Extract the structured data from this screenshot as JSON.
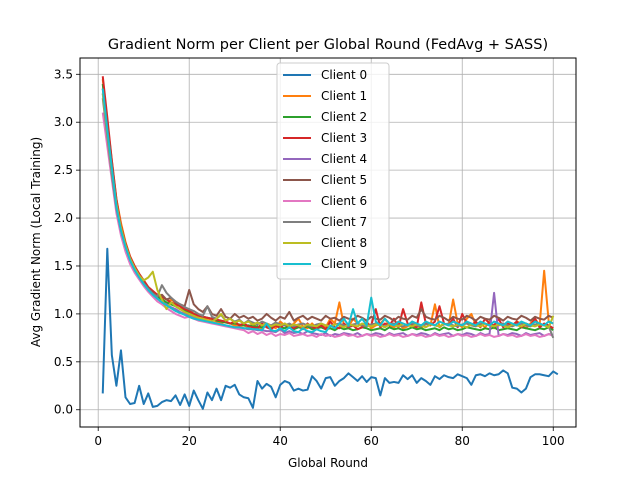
{
  "chart_data": {
    "type": "line",
    "title": "Gradient Norm per Client per Global Round (FedAvg + SASS)",
    "xlabel": "Global Round",
    "ylabel": "Avg Gradient Norm (Local Training)",
    "xlim": [
      -4,
      105
    ],
    "ylim": [
      -0.18,
      3.67
    ],
    "xticks": [
      0,
      20,
      40,
      60,
      80,
      100
    ],
    "yticks": [
      0.0,
      0.5,
      1.0,
      1.5,
      2.0,
      2.5,
      3.0,
      3.5
    ],
    "xtick_labels": [
      "0",
      "20",
      "40",
      "60",
      "80",
      "100"
    ],
    "ytick_labels": [
      "0.0",
      "0.5",
      "1.0",
      "1.5",
      "2.0",
      "2.5",
      "3.0",
      "3.5"
    ],
    "grid": true,
    "legend_position": "top-center",
    "x_start": 1,
    "series": [
      {
        "name": "Client 0",
        "color": "#1f77b4",
        "values": [
          0.17,
          1.68,
          0.57,
          0.25,
          0.62,
          0.13,
          0.06,
          0.07,
          0.25,
          0.06,
          0.17,
          0.03,
          0.04,
          0.08,
          0.1,
          0.09,
          0.15,
          0.05,
          0.16,
          0.04,
          0.2,
          0.1,
          0.01,
          0.18,
          0.1,
          0.22,
          0.1,
          0.25,
          0.23,
          0.26,
          0.16,
          0.13,
          0.12,
          0.02,
          0.3,
          0.22,
          0.27,
          0.24,
          0.13,
          0.26,
          0.3,
          0.28,
          0.2,
          0.22,
          0.2,
          0.21,
          0.35,
          0.3,
          0.22,
          0.33,
          0.34,
          0.25,
          0.3,
          0.33,
          0.38,
          0.34,
          0.3,
          0.35,
          0.29,
          0.34,
          0.33,
          0.15,
          0.33,
          0.28,
          0.29,
          0.28,
          0.36,
          0.32,
          0.36,
          0.28,
          0.33,
          0.3,
          0.26,
          0.35,
          0.32,
          0.36,
          0.34,
          0.33,
          0.37,
          0.35,
          0.33,
          0.26,
          0.36,
          0.37,
          0.35,
          0.38,
          0.36,
          0.37,
          0.41,
          0.38,
          0.23,
          0.22,
          0.18,
          0.22,
          0.34,
          0.37,
          0.37,
          0.36,
          0.35,
          0.4,
          0.37
        ]
      },
      {
        "name": "Client 1",
        "color": "#ff7f0e",
        "values": [
          3.45,
          3.0,
          2.6,
          2.2,
          1.95,
          1.75,
          1.6,
          1.5,
          1.4,
          1.35,
          1.28,
          1.22,
          1.2,
          1.17,
          1.1,
          1.15,
          1.12,
          1.08,
          1.02,
          1.05,
          1.0,
          0.98,
          0.97,
          0.95,
          0.94,
          0.92,
          0.9,
          0.92,
          0.9,
          0.88,
          0.87,
          0.88,
          0.86,
          0.9,
          0.85,
          0.84,
          0.9,
          0.88,
          0.85,
          0.92,
          0.88,
          0.86,
          0.9,
          0.95,
          0.87,
          0.85,
          0.9,
          0.85,
          0.88,
          0.86,
          0.95,
          0.9,
          1.12,
          0.88,
          0.86,
          0.95,
          0.9,
          0.87,
          0.92,
          0.85,
          0.88,
          0.9,
          0.95,
          0.88,
          0.86,
          0.9,
          0.85,
          0.87,
          0.92,
          0.88,
          0.85,
          0.9,
          0.88,
          1.1,
          0.86,
          0.9,
          0.88,
          1.15,
          0.9,
          0.86,
          0.95,
          1.0,
          0.88,
          0.9,
          0.86,
          0.92,
          0.85,
          0.88,
          0.9,
          0.86,
          0.88,
          0.92,
          0.9,
          0.85,
          0.9,
          0.95,
          0.88,
          1.45,
          0.92,
          0.9
        ]
      },
      {
        "name": "Client 2",
        "color": "#2ca02c",
        "values": [
          3.4,
          2.95,
          2.55,
          2.15,
          1.9,
          1.72,
          1.58,
          1.48,
          1.4,
          1.33,
          1.27,
          1.22,
          1.18,
          1.15,
          1.12,
          1.1,
          1.08,
          1.05,
          1.03,
          1.02,
          1.0,
          0.99,
          0.97,
          0.96,
          0.95,
          0.93,
          0.92,
          0.91,
          0.9,
          0.9,
          0.89,
          0.88,
          0.88,
          0.87,
          0.87,
          0.86,
          0.88,
          0.85,
          0.9,
          0.86,
          0.85,
          0.88,
          0.84,
          0.86,
          0.85,
          0.87,
          0.84,
          0.85,
          0.86,
          0.84,
          0.85,
          0.83,
          0.86,
          0.84,
          0.85,
          0.83,
          0.84,
          0.86,
          0.85,
          0.83,
          0.84,
          0.85,
          0.83,
          0.86,
          0.84,
          0.85,
          0.83,
          0.84,
          0.86,
          0.84,
          0.85,
          0.83,
          0.84,
          0.85,
          0.83,
          0.86,
          0.84,
          0.85,
          0.83,
          0.84,
          0.86,
          0.85,
          0.84,
          0.83,
          0.85,
          0.84,
          0.86,
          0.83,
          0.84,
          0.85,
          0.84,
          0.83,
          0.86,
          0.85,
          0.84,
          0.83,
          0.85,
          0.84,
          0.86,
          0.83
        ]
      },
      {
        "name": "Client 3",
        "color": "#d62728",
        "values": [
          3.48,
          3.05,
          2.6,
          2.2,
          1.92,
          1.74,
          1.6,
          1.5,
          1.42,
          1.35,
          1.28,
          1.24,
          1.2,
          1.18,
          1.15,
          1.12,
          1.1,
          1.08,
          1.05,
          1.03,
          1.0,
          0.98,
          0.97,
          0.96,
          0.95,
          0.94,
          0.93,
          0.92,
          0.9,
          0.92,
          0.88,
          0.9,
          0.87,
          0.86,
          0.85,
          0.9,
          0.86,
          0.84,
          0.88,
          0.85,
          0.9,
          0.86,
          0.85,
          0.88,
          0.84,
          0.9,
          0.86,
          0.85,
          0.88,
          0.84,
          0.92,
          0.86,
          0.85,
          0.9,
          0.86,
          0.88,
          0.84,
          0.86,
          0.9,
          0.88,
          1.05,
          0.86,
          0.9,
          0.88,
          0.95,
          0.86,
          1.05,
          0.9,
          0.88,
          0.86,
          1.12,
          0.9,
          0.88,
          0.92,
          1.08,
          0.9,
          0.88,
          0.95,
          0.86,
          1.0,
          0.9,
          0.88,
          0.92,
          0.86,
          0.95,
          0.9,
          0.88,
          0.95,
          0.86,
          0.9,
          0.88,
          0.92,
          0.86,
          0.9,
          0.88,
          0.95,
          0.86,
          0.9,
          0.88,
          0.85
        ]
      },
      {
        "name": "Client 4",
        "color": "#9467bd",
        "values": [
          3.3,
          2.9,
          2.5,
          2.1,
          1.85,
          1.68,
          1.55,
          1.45,
          1.38,
          1.3,
          1.24,
          1.2,
          1.16,
          1.12,
          1.1,
          1.07,
          1.05,
          1.02,
          1.0,
          0.98,
          0.96,
          0.95,
          0.93,
          0.92,
          0.91,
          0.9,
          0.89,
          0.88,
          0.87,
          0.86,
          0.86,
          0.85,
          0.84,
          0.84,
          0.83,
          0.83,
          0.82,
          0.82,
          0.81,
          0.84,
          0.8,
          0.82,
          0.8,
          0.81,
          0.79,
          0.82,
          0.8,
          0.79,
          0.78,
          0.8,
          0.77,
          0.79,
          0.78,
          0.8,
          0.79,
          0.78,
          0.8,
          0.77,
          0.79,
          0.78,
          0.8,
          0.79,
          0.77,
          0.8,
          0.78,
          0.79,
          0.8,
          0.77,
          0.79,
          0.78,
          0.8,
          0.79,
          0.77,
          0.8,
          0.78,
          0.79,
          0.8,
          0.77,
          0.79,
          0.78,
          0.8,
          0.79,
          0.77,
          0.8,
          0.78,
          0.79,
          1.22,
          0.77,
          0.79,
          0.78,
          0.8,
          0.79,
          0.77,
          0.8,
          0.78,
          0.79,
          0.8,
          0.77,
          0.79,
          0.78
        ]
      },
      {
        "name": "Client 5",
        "color": "#8c564b",
        "values": [
          3.35,
          2.95,
          2.55,
          2.15,
          1.88,
          1.7,
          1.56,
          1.47,
          1.4,
          1.32,
          1.27,
          1.22,
          1.18,
          1.2,
          1.15,
          1.17,
          1.12,
          1.1,
          1.08,
          1.25,
          1.1,
          1.05,
          1.02,
          1.08,
          1.0,
          0.98,
          1.05,
          0.97,
          0.95,
          1.0,
          0.96,
          0.98,
          0.95,
          0.97,
          0.93,
          0.95,
          1.0,
          0.96,
          0.93,
          0.97,
          0.95,
          1.02,
          0.93,
          0.96,
          0.98,
          0.94,
          0.97,
          0.95,
          0.93,
          0.98,
          0.95,
          0.96,
          0.93,
          0.97,
          0.95,
          0.94,
          0.98,
          0.96,
          0.93,
          0.97,
          0.95,
          0.94,
          0.98,
          0.96,
          0.93,
          0.97,
          0.95,
          0.94,
          0.98,
          0.96,
          1.05,
          0.97,
          0.95,
          0.94,
          0.98,
          0.96,
          0.93,
          0.97,
          0.95,
          0.94,
          0.98,
          0.96,
          0.93,
          0.97,
          0.95,
          0.94,
          0.98,
          0.96,
          0.93,
          0.97,
          0.95,
          0.94,
          0.98,
          0.96,
          0.93,
          0.97,
          0.95,
          0.94,
          0.98,
          0.96
        ]
      },
      {
        "name": "Client 6",
        "color": "#e377c2",
        "values": [
          3.1,
          2.75,
          2.4,
          2.05,
          1.82,
          1.65,
          1.52,
          1.43,
          1.36,
          1.29,
          1.23,
          1.18,
          1.13,
          1.1,
          1.06,
          1.03,
          1.0,
          0.98,
          0.96,
          0.97,
          0.95,
          0.93,
          0.92,
          0.91,
          0.9,
          0.89,
          0.88,
          0.87,
          0.86,
          0.85,
          0.84,
          0.83,
          0.8,
          0.82,
          0.79,
          0.81,
          0.78,
          0.8,
          0.77,
          0.79,
          0.78,
          0.8,
          0.77,
          0.78,
          0.79,
          0.77,
          0.78,
          0.76,
          0.79,
          0.77,
          0.78,
          0.76,
          0.77,
          0.79,
          0.77,
          0.78,
          0.76,
          0.77,
          0.79,
          0.77,
          0.78,
          0.76,
          0.77,
          0.79,
          0.77,
          0.78,
          0.76,
          0.77,
          0.79,
          0.77,
          0.78,
          0.76,
          0.77,
          0.79,
          0.77,
          0.78,
          0.76,
          0.77,
          0.79,
          0.77,
          0.78,
          0.76,
          0.77,
          0.79,
          0.77,
          0.78,
          0.76,
          0.77,
          0.79,
          0.77,
          0.78,
          0.76,
          0.77,
          0.79,
          0.77,
          0.78,
          0.76,
          0.77,
          0.79,
          0.77
        ]
      },
      {
        "name": "Client 7",
        "color": "#7f7f7f",
        "values": [
          3.25,
          2.85,
          2.45,
          2.1,
          1.87,
          1.7,
          1.56,
          1.46,
          1.39,
          1.32,
          1.26,
          1.21,
          1.18,
          1.3,
          1.22,
          1.17,
          1.13,
          1.1,
          1.07,
          1.05,
          1.03,
          1.0,
          0.98,
          1.08,
          0.97,
          0.95,
          0.99,
          0.93,
          0.95,
          0.92,
          0.94,
          0.9,
          0.93,
          0.91,
          0.89,
          0.92,
          0.9,
          0.88,
          0.91,
          0.89,
          0.88,
          0.9,
          0.87,
          0.89,
          0.9,
          0.88,
          0.87,
          0.89,
          0.9,
          0.88,
          0.87,
          0.89,
          0.9,
          0.88,
          0.87,
          0.89,
          0.9,
          0.88,
          0.87,
          0.89,
          0.9,
          0.88,
          0.87,
          0.89,
          0.9,
          0.88,
          0.87,
          0.89,
          0.9,
          0.88,
          0.87,
          0.89,
          0.9,
          0.88,
          0.87,
          0.89,
          0.9,
          0.88,
          0.87,
          0.89,
          0.9,
          0.88,
          0.87,
          0.89,
          0.9,
          0.88,
          0.87,
          0.89,
          0.9,
          0.88,
          0.87,
          0.89,
          0.9,
          0.88,
          0.87,
          0.89,
          0.9,
          0.88,
          0.87,
          0.75
        ]
      },
      {
        "name": "Client 8",
        "color": "#bcbd22",
        "values": [
          3.3,
          2.9,
          2.5,
          2.15,
          1.9,
          1.72,
          1.58,
          1.48,
          1.4,
          1.35,
          1.38,
          1.44,
          1.25,
          1.15,
          1.05,
          1.12,
          1.08,
          1.05,
          1.02,
          1.0,
          0.98,
          0.96,
          0.95,
          0.93,
          0.92,
          0.95,
          1.0,
          0.93,
          0.95,
          0.91,
          0.93,
          0.9,
          0.92,
          0.89,
          0.91,
          0.88,
          0.9,
          0.87,
          0.89,
          0.88,
          0.9,
          0.87,
          0.89,
          0.88,
          0.86,
          0.89,
          0.88,
          0.87,
          0.9,
          0.88,
          0.87,
          0.89,
          0.88,
          0.86,
          0.89,
          0.88,
          0.87,
          0.9,
          0.88,
          0.87,
          0.89,
          0.88,
          0.86,
          0.89,
          0.88,
          0.87,
          0.9,
          0.88,
          0.87,
          0.89,
          0.88,
          0.86,
          0.89,
          0.88,
          0.87,
          0.9,
          0.88,
          0.87,
          0.89,
          0.88,
          0.86,
          0.89,
          0.88,
          0.87,
          0.9,
          0.88,
          0.87,
          0.89,
          0.88,
          0.86,
          0.89,
          0.88,
          0.87,
          0.9,
          0.88,
          0.87,
          0.89,
          0.88,
          0.86,
          0.98
        ]
      },
      {
        "name": "Client 9",
        "color": "#17becf",
        "values": [
          3.35,
          2.92,
          2.52,
          2.12,
          1.87,
          1.7,
          1.56,
          1.46,
          1.38,
          1.31,
          1.25,
          1.2,
          1.16,
          1.12,
          1.09,
          1.06,
          1.03,
          1.01,
          0.99,
          0.97,
          0.95,
          0.94,
          0.93,
          0.92,
          0.91,
          0.9,
          0.89,
          0.88,
          0.87,
          0.86,
          0.86,
          0.85,
          0.85,
          0.84,
          0.84,
          0.83,
          0.9,
          0.83,
          0.82,
          0.85,
          0.82,
          0.86,
          0.82,
          0.81,
          0.85,
          0.82,
          0.81,
          0.84,
          0.82,
          0.81,
          0.88,
          0.85,
          0.9,
          0.95,
          0.88,
          1.05,
          0.9,
          0.95,
          0.88,
          1.17,
          0.92,
          0.88,
          0.95,
          0.9,
          0.88,
          0.92,
          0.9,
          0.88,
          0.92,
          0.9,
          0.88,
          0.92,
          0.9,
          0.88,
          0.92,
          0.9,
          0.88,
          0.92,
          0.9,
          0.88,
          0.92,
          0.9,
          0.88,
          0.92,
          0.9,
          0.88,
          0.92,
          0.9,
          0.88,
          0.92,
          0.9,
          0.88,
          0.92,
          0.9,
          0.88,
          0.92,
          0.9,
          0.88,
          0.92,
          0.9
        ]
      }
    ]
  }
}
